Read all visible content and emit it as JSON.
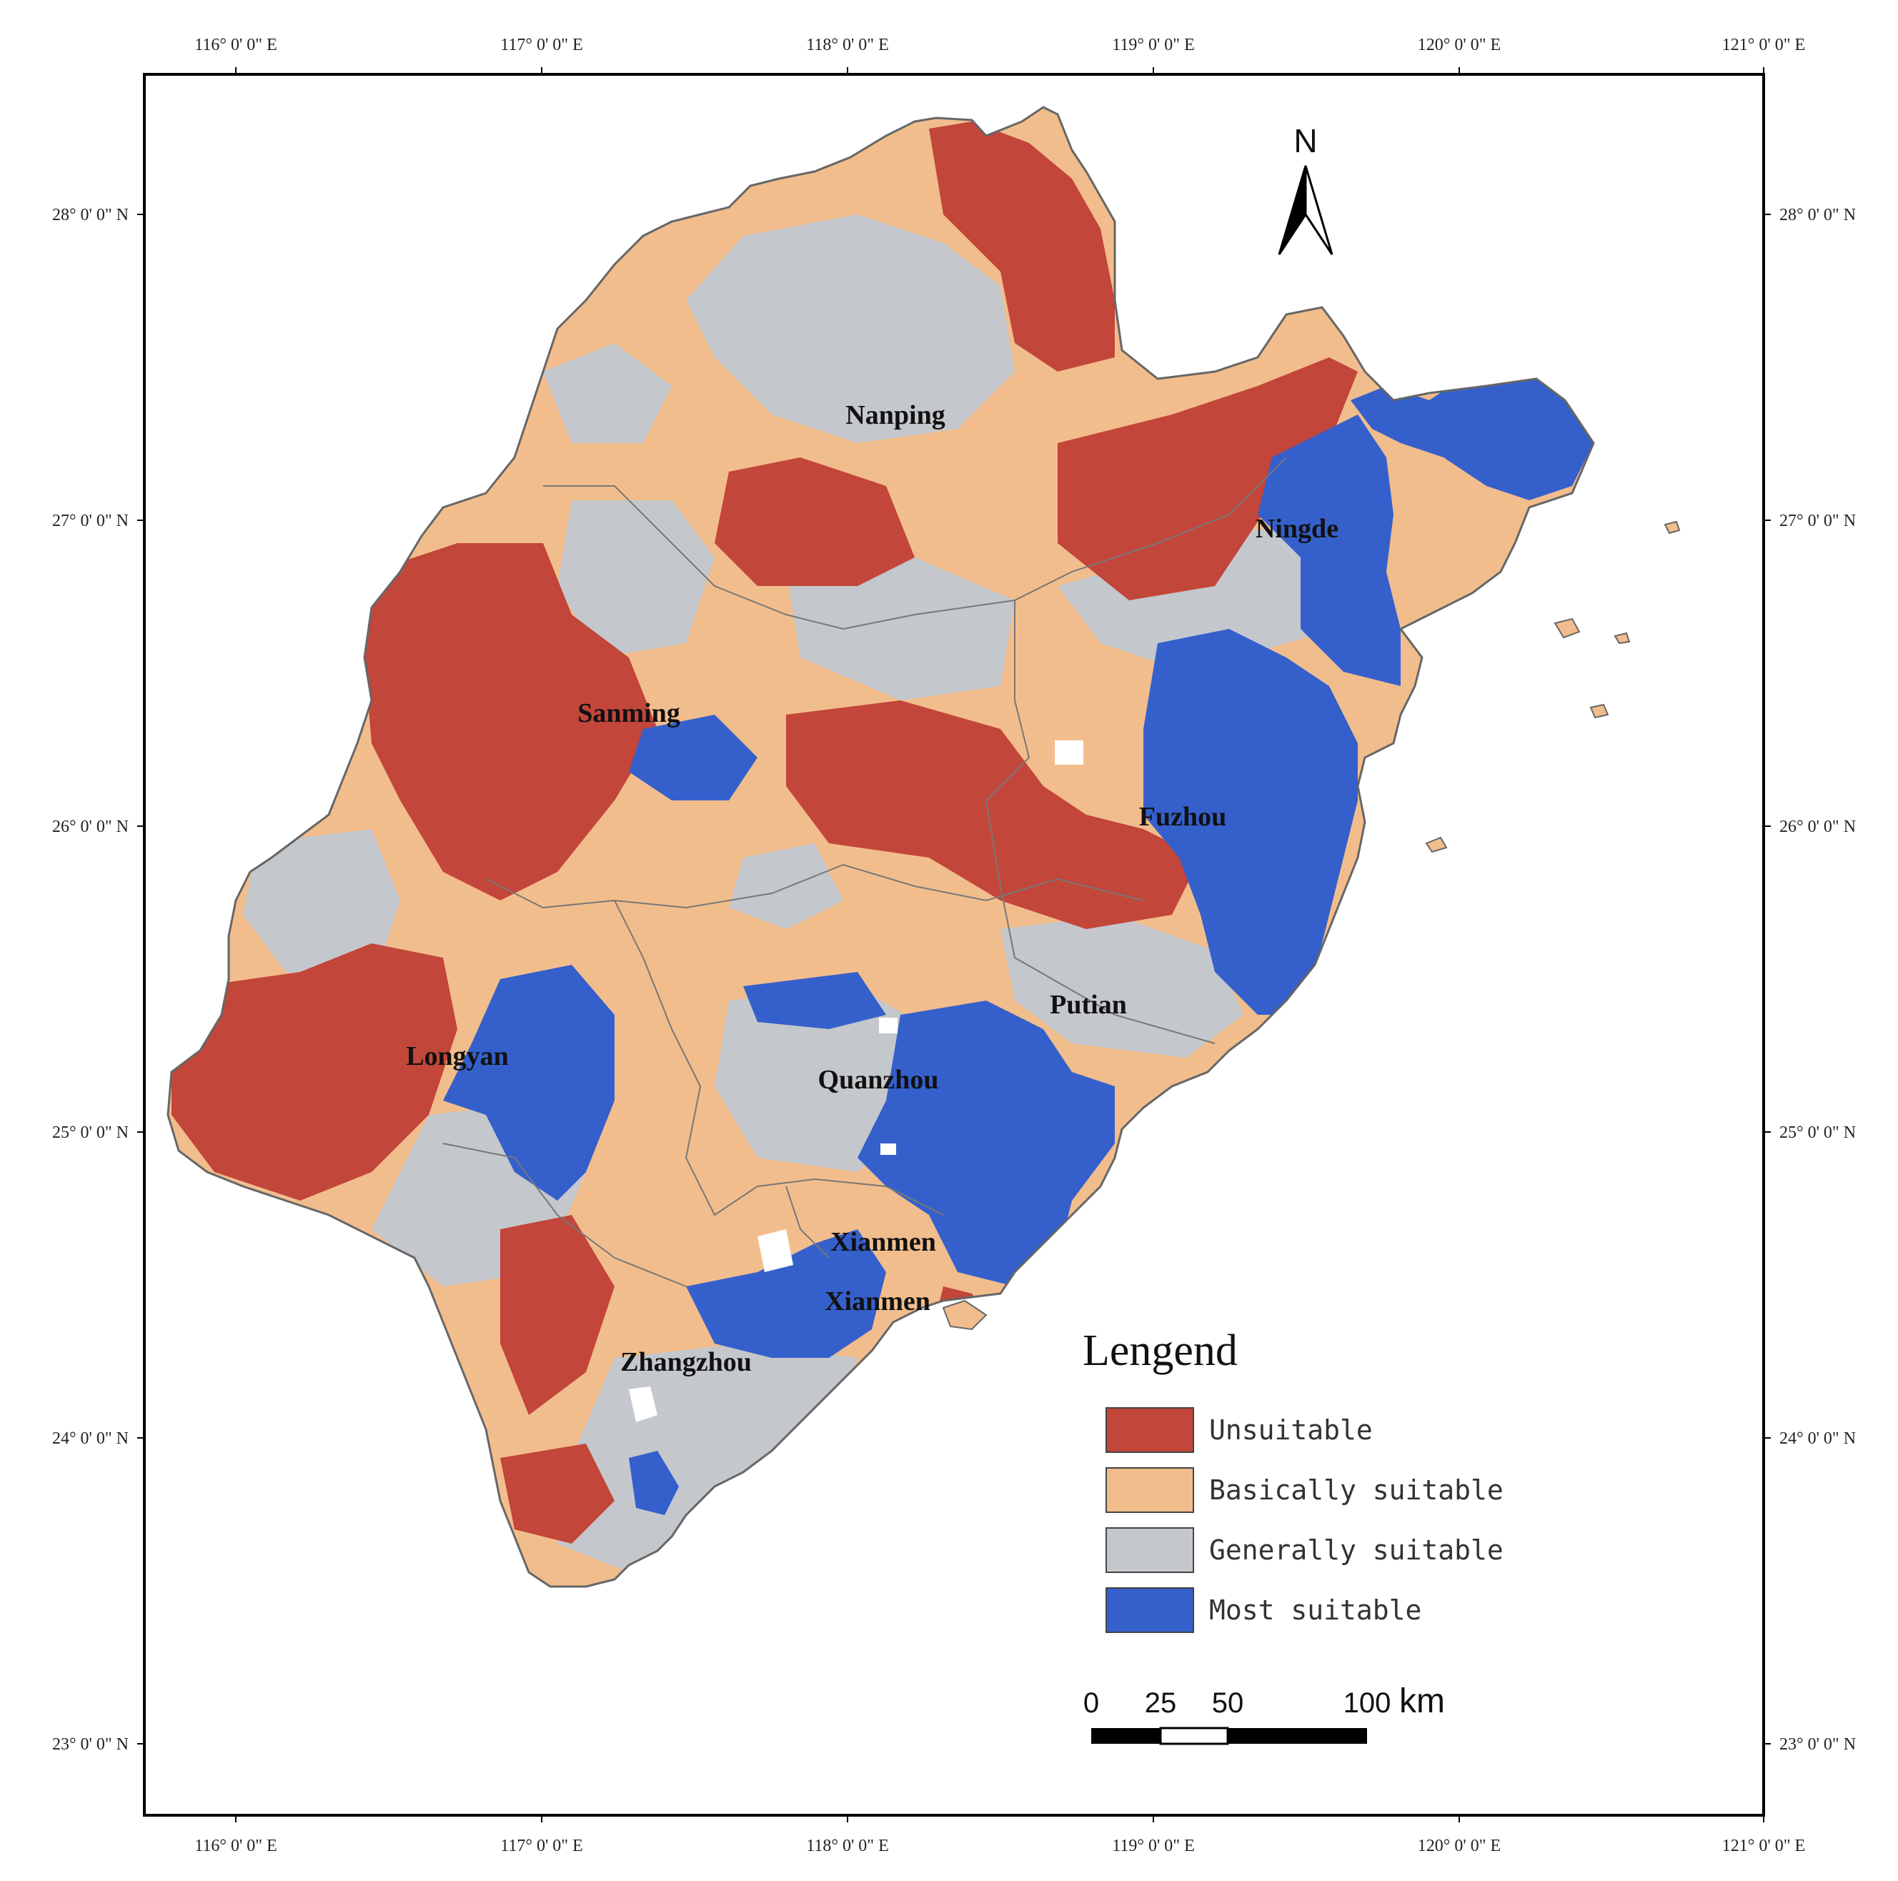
{
  "frame": {
    "lon_ticks": [
      "116° 0' 0\" E",
      "117° 0' 0\" E",
      "118° 0' 0\" E",
      "119° 0' 0\" E",
      "120° 0' 0\" E",
      "121° 0' 0\" E"
    ],
    "lat_ticks": [
      "28° 0' 0\" N",
      "27° 0' 0\" N",
      "26° 0' 0\" N",
      "25° 0' 0\" N",
      "24° 0' 0\" N",
      "23° 0' 0\" N"
    ]
  },
  "north_arrow": {
    "label": "N",
    "icon": "north-arrow-icon"
  },
  "cities": [
    "Nanping",
    "Ningde",
    "Sanming",
    "Fuzhou",
    "Putian",
    "Longyan",
    "Quanzhou",
    "Xianmen",
    "Xianmen",
    "Zhangzhou"
  ],
  "legend": {
    "title": "Lengend",
    "items": [
      {
        "label": "Unsuitable",
        "color": "#c2463a"
      },
      {
        "label": "Basically suitable",
        "color": "#f2bd8c"
      },
      {
        "label": "Generally suitable",
        "color": "#c4c7cc"
      },
      {
        "label": "Most suitable",
        "color": "#3560cc"
      }
    ]
  },
  "scale_bar": {
    "ticks": [
      "0",
      "25",
      "50",
      "100"
    ],
    "unit": "km"
  },
  "colors": {
    "unsuitable": "#c2463a",
    "basically_suitable": "#f2bd8c",
    "generally_suitable": "#c4c7cc",
    "most_suitable": "#3560cc",
    "boundary": "#666666"
  }
}
